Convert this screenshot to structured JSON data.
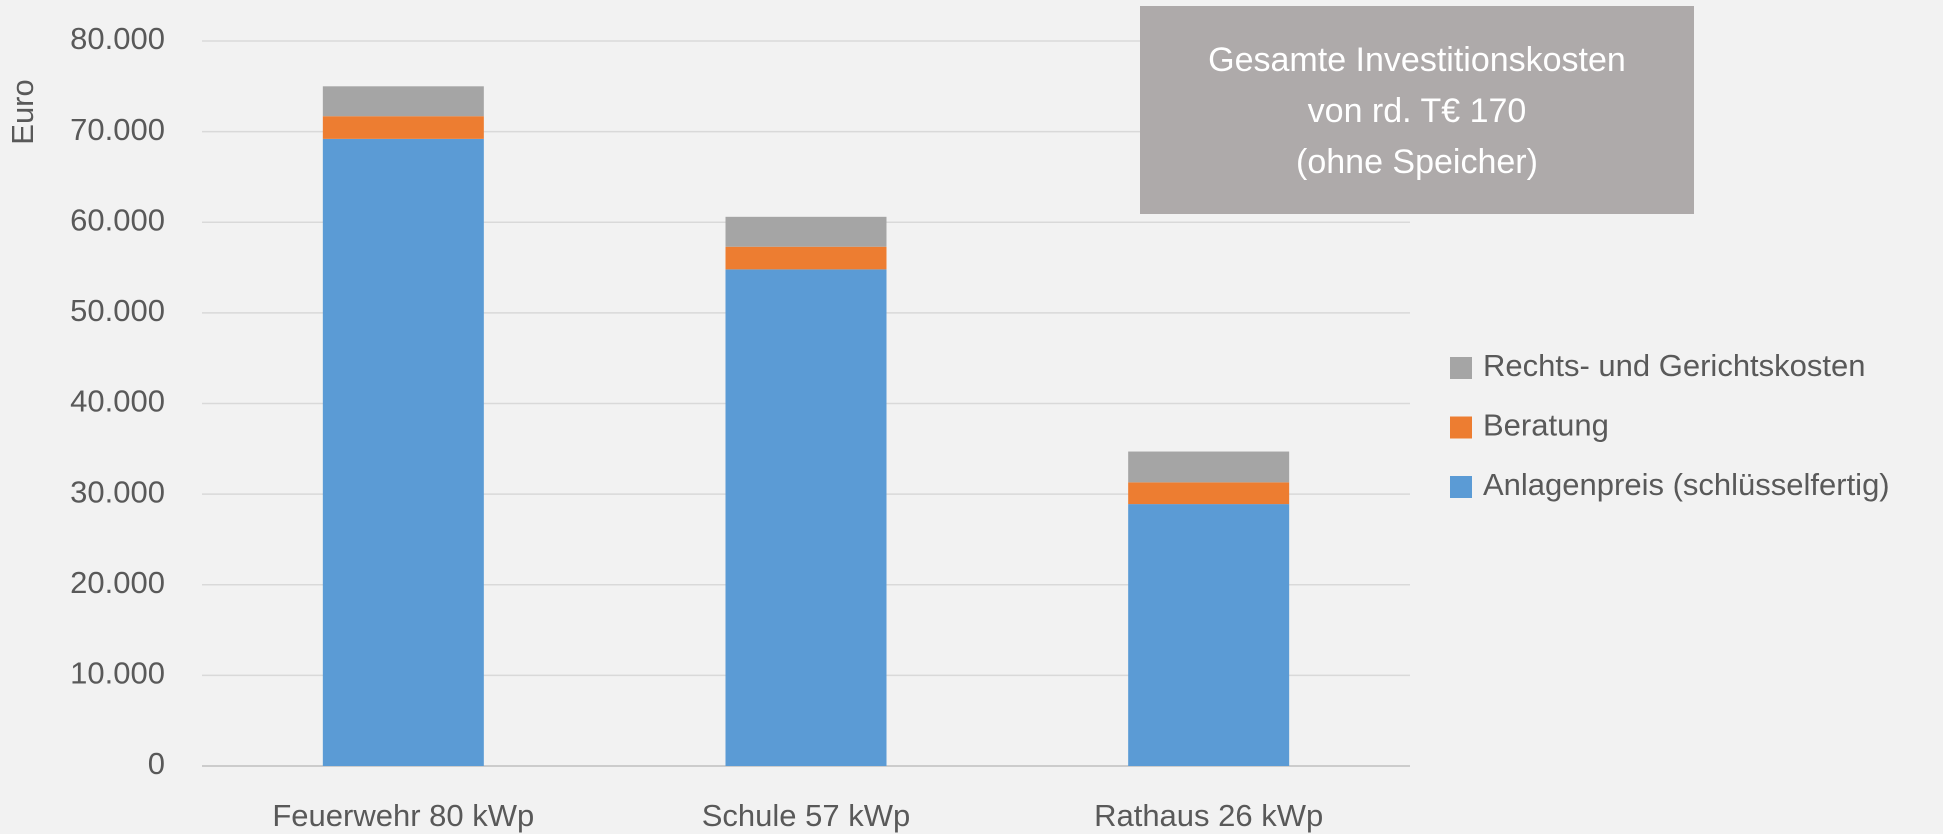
{
  "chart_data": {
    "type": "stacked_bar",
    "categories": [
      "Feuerwehr 80 kWp",
      "Schule 57 kWp",
      "Rathaus 26 kWp"
    ],
    "series": [
      {
        "name": "Anlagenpreis (schlüsselfertig)",
        "color": "#5b9bd5",
        "values": [
          69200,
          54800,
          28900
        ]
      },
      {
        "name": "Beratung",
        "color": "#ed7d31",
        "values": [
          2500,
          2500,
          2400
        ]
      },
      {
        "name": "Rechts- und Gerichtskosten",
        "color": "#a5a5a5",
        "values": [
          3300,
          3300,
          3400
        ]
      }
    ],
    "ylabel": "Euro",
    "ylim": [
      0,
      80000
    ],
    "yticks": [
      0,
      {
        "value": 10000,
        "label": "10.000"
      },
      {
        "value": 20000,
        "label": "20.000"
      },
      {
        "value": 30000,
        "label": "30.000"
      },
      {
        "value": 40000,
        "label": "40.000"
      },
      {
        "value": 50000,
        "label": "50.000"
      },
      {
        "value": 60000,
        "label": "60.000"
      },
      {
        "value": 70000,
        "label": "70.000"
      },
      {
        "value": 80000,
        "label": "80.000"
      }
    ],
    "grid": true,
    "legend": "right",
    "annotation": [
      "Gesamte Investitionskosten",
      "von rd. T€ 170",
      "(ohne Speicher)"
    ]
  }
}
